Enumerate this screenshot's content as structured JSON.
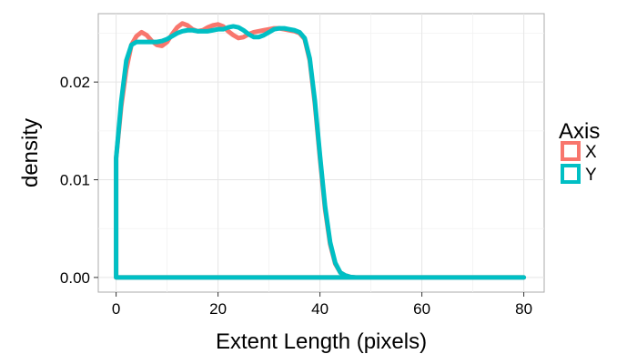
{
  "chart_data": {
    "type": "line",
    "title": "",
    "xlabel": "Extent Length (pixels)",
    "ylabel": "density",
    "xlim": [
      -3.5,
      84
    ],
    "ylim": [
      -0.0015,
      0.027
    ],
    "x_ticks": [
      0,
      20,
      40,
      60,
      80
    ],
    "y_ticks": [
      0,
      0.01,
      0.02
    ],
    "x_tick_labels": [
      "0",
      "20",
      "40",
      "60",
      "80"
    ],
    "y_tick_labels": [
      "0.00",
      "0.01",
      "0.02"
    ],
    "grid": true,
    "legend": {
      "title": "Axis",
      "position": "right"
    },
    "series": [
      {
        "name": "X",
        "color": "#F8766D",
        "points": [
          [
            0,
            0
          ],
          [
            80,
            0
          ],
          [
            80,
            0
          ],
          [
            0,
            0
          ],
          [
            0,
            0.0122
          ],
          [
            1,
            0.0175
          ],
          [
            2,
            0.0213
          ],
          [
            3,
            0.0238
          ],
          [
            4,
            0.0247
          ],
          [
            5,
            0.0251
          ],
          [
            6,
            0.0248
          ],
          [
            7,
            0.0242
          ],
          [
            8,
            0.0238
          ],
          [
            9,
            0.0237
          ],
          [
            10,
            0.0241
          ],
          [
            11,
            0.0249
          ],
          [
            12,
            0.0256
          ],
          [
            13,
            0.026
          ],
          [
            14,
            0.0258
          ],
          [
            15,
            0.0254
          ],
          [
            16,
            0.0252
          ],
          [
            17,
            0.0253
          ],
          [
            18,
            0.0256
          ],
          [
            19,
            0.0258
          ],
          [
            20,
            0.0259
          ],
          [
            21,
            0.0257
          ],
          [
            22,
            0.0252
          ],
          [
            23,
            0.0248
          ],
          [
            24,
            0.0245
          ],
          [
            25,
            0.0246
          ],
          [
            26,
            0.0249
          ],
          [
            27,
            0.0251
          ],
          [
            28,
            0.0252
          ],
          [
            29,
            0.0253
          ],
          [
            30,
            0.0254
          ],
          [
            31,
            0.0255
          ],
          [
            32,
            0.0255
          ],
          [
            33,
            0.0254
          ],
          [
            34,
            0.0253
          ],
          [
            35,
            0.0252
          ],
          [
            36,
            0.025
          ],
          [
            37,
            0.0244
          ],
          [
            38,
            0.0222
          ],
          [
            39,
            0.0178
          ],
          [
            40,
            0.0122
          ],
          [
            41,
            0.007
          ],
          [
            42,
            0.0034
          ],
          [
            43,
            0.0014
          ],
          [
            44,
            0.0005
          ],
          [
            45,
            0.0002
          ],
          [
            46,
            5e-05
          ],
          [
            47,
            0
          ],
          [
            80,
            0
          ]
        ]
      },
      {
        "name": "Y",
        "color": "#00BFC4",
        "points": [
          [
            0,
            0
          ],
          [
            80,
            0
          ],
          [
            80,
            0
          ],
          [
            0,
            0
          ],
          [
            0,
            0.0122
          ],
          [
            1,
            0.018
          ],
          [
            2,
            0.0222
          ],
          [
            3,
            0.0238
          ],
          [
            4,
            0.0241
          ],
          [
            5,
            0.0241
          ],
          [
            6,
            0.0241
          ],
          [
            7,
            0.0241
          ],
          [
            8,
            0.0241
          ],
          [
            9,
            0.0242
          ],
          [
            10,
            0.0244
          ],
          [
            11,
            0.0247
          ],
          [
            12,
            0.025
          ],
          [
            13,
            0.0252
          ],
          [
            14,
            0.0253
          ],
          [
            15,
            0.0253
          ],
          [
            16,
            0.0252
          ],
          [
            17,
            0.0252
          ],
          [
            18,
            0.0252
          ],
          [
            19,
            0.0253
          ],
          [
            20,
            0.0254
          ],
          [
            21,
            0.0254
          ],
          [
            22,
            0.0256
          ],
          [
            23,
            0.0257
          ],
          [
            24,
            0.0256
          ],
          [
            25,
            0.0253
          ],
          [
            26,
            0.0249
          ],
          [
            27,
            0.0246
          ],
          [
            28,
            0.0246
          ],
          [
            29,
            0.0248
          ],
          [
            30,
            0.0251
          ],
          [
            31,
            0.0254
          ],
          [
            32,
            0.0255
          ],
          [
            33,
            0.0255
          ],
          [
            34,
            0.0254
          ],
          [
            35,
            0.0253
          ],
          [
            36,
            0.0251
          ],
          [
            37,
            0.0245
          ],
          [
            38,
            0.0224
          ],
          [
            39,
            0.0181
          ],
          [
            40,
            0.0125
          ],
          [
            41,
            0.0073
          ],
          [
            42,
            0.0036
          ],
          [
            43,
            0.0015
          ],
          [
            44,
            0.0005
          ],
          [
            45,
            0.0002
          ],
          [
            46,
            5e-05
          ],
          [
            47,
            0
          ],
          [
            80,
            0
          ]
        ]
      }
    ]
  }
}
